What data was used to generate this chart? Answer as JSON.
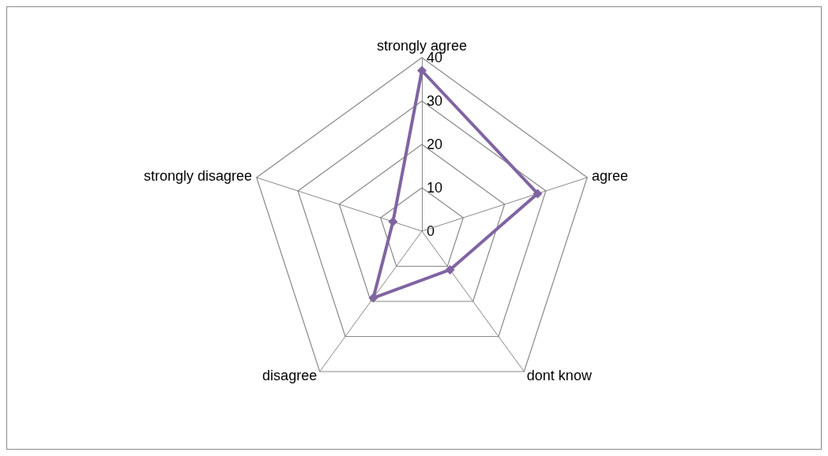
{
  "chart_data": {
    "type": "radar",
    "categories": [
      "strongly agree",
      "agree",
      "dont know",
      "disagree",
      "strongly disagree"
    ],
    "series": [
      {
        "color": "#8064a2",
        "values": [
          37,
          28,
          11,
          19,
          7
        ]
      }
    ],
    "ylim": [
      0,
      40
    ],
    "yticks": [
      0,
      10,
      20,
      30,
      40
    ],
    "grid": true,
    "marker": "diamond",
    "line_style": "solid"
  }
}
